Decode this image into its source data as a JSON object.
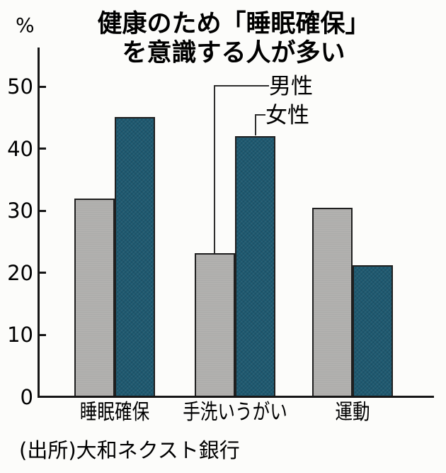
{
  "figure": {
    "title_line1": "健康のため「睡眠確保」",
    "title_line2": "を意識する人が多い",
    "y_unit": "%",
    "legend": {
      "male": "男性",
      "female": "女性"
    },
    "source": "(出所)大和ネクスト銀行"
  },
  "chart_data": {
    "type": "bar",
    "title": "健康のため「睡眠確保」を意識する人が多い",
    "categories": [
      "睡眠確保",
      "手洗いうがい",
      "運動"
    ],
    "series": [
      {
        "name": "男性",
        "color": "#b2b1af",
        "values": [
          32.0,
          23.2,
          30.5
        ]
      },
      {
        "name": "女性",
        "color": "#1e5970",
        "values": [
          45.1,
          42.0,
          21.2
        ]
      }
    ],
    "ylabel": "%",
    "ylim": [
      0,
      55
    ],
    "yticks": [
      0,
      10,
      20,
      30,
      40,
      50
    ],
    "grid": false,
    "legend_position": "callout-lines-to-second-group",
    "source": "(出所)大和ネクスト銀行"
  },
  "colors": {
    "male_bar": "#b2b1af",
    "female_bar": "#1e5970",
    "bar_outline": "#1f1f1f",
    "axis": "#161616",
    "background": "#fcfcfa",
    "text": "#000000"
  }
}
